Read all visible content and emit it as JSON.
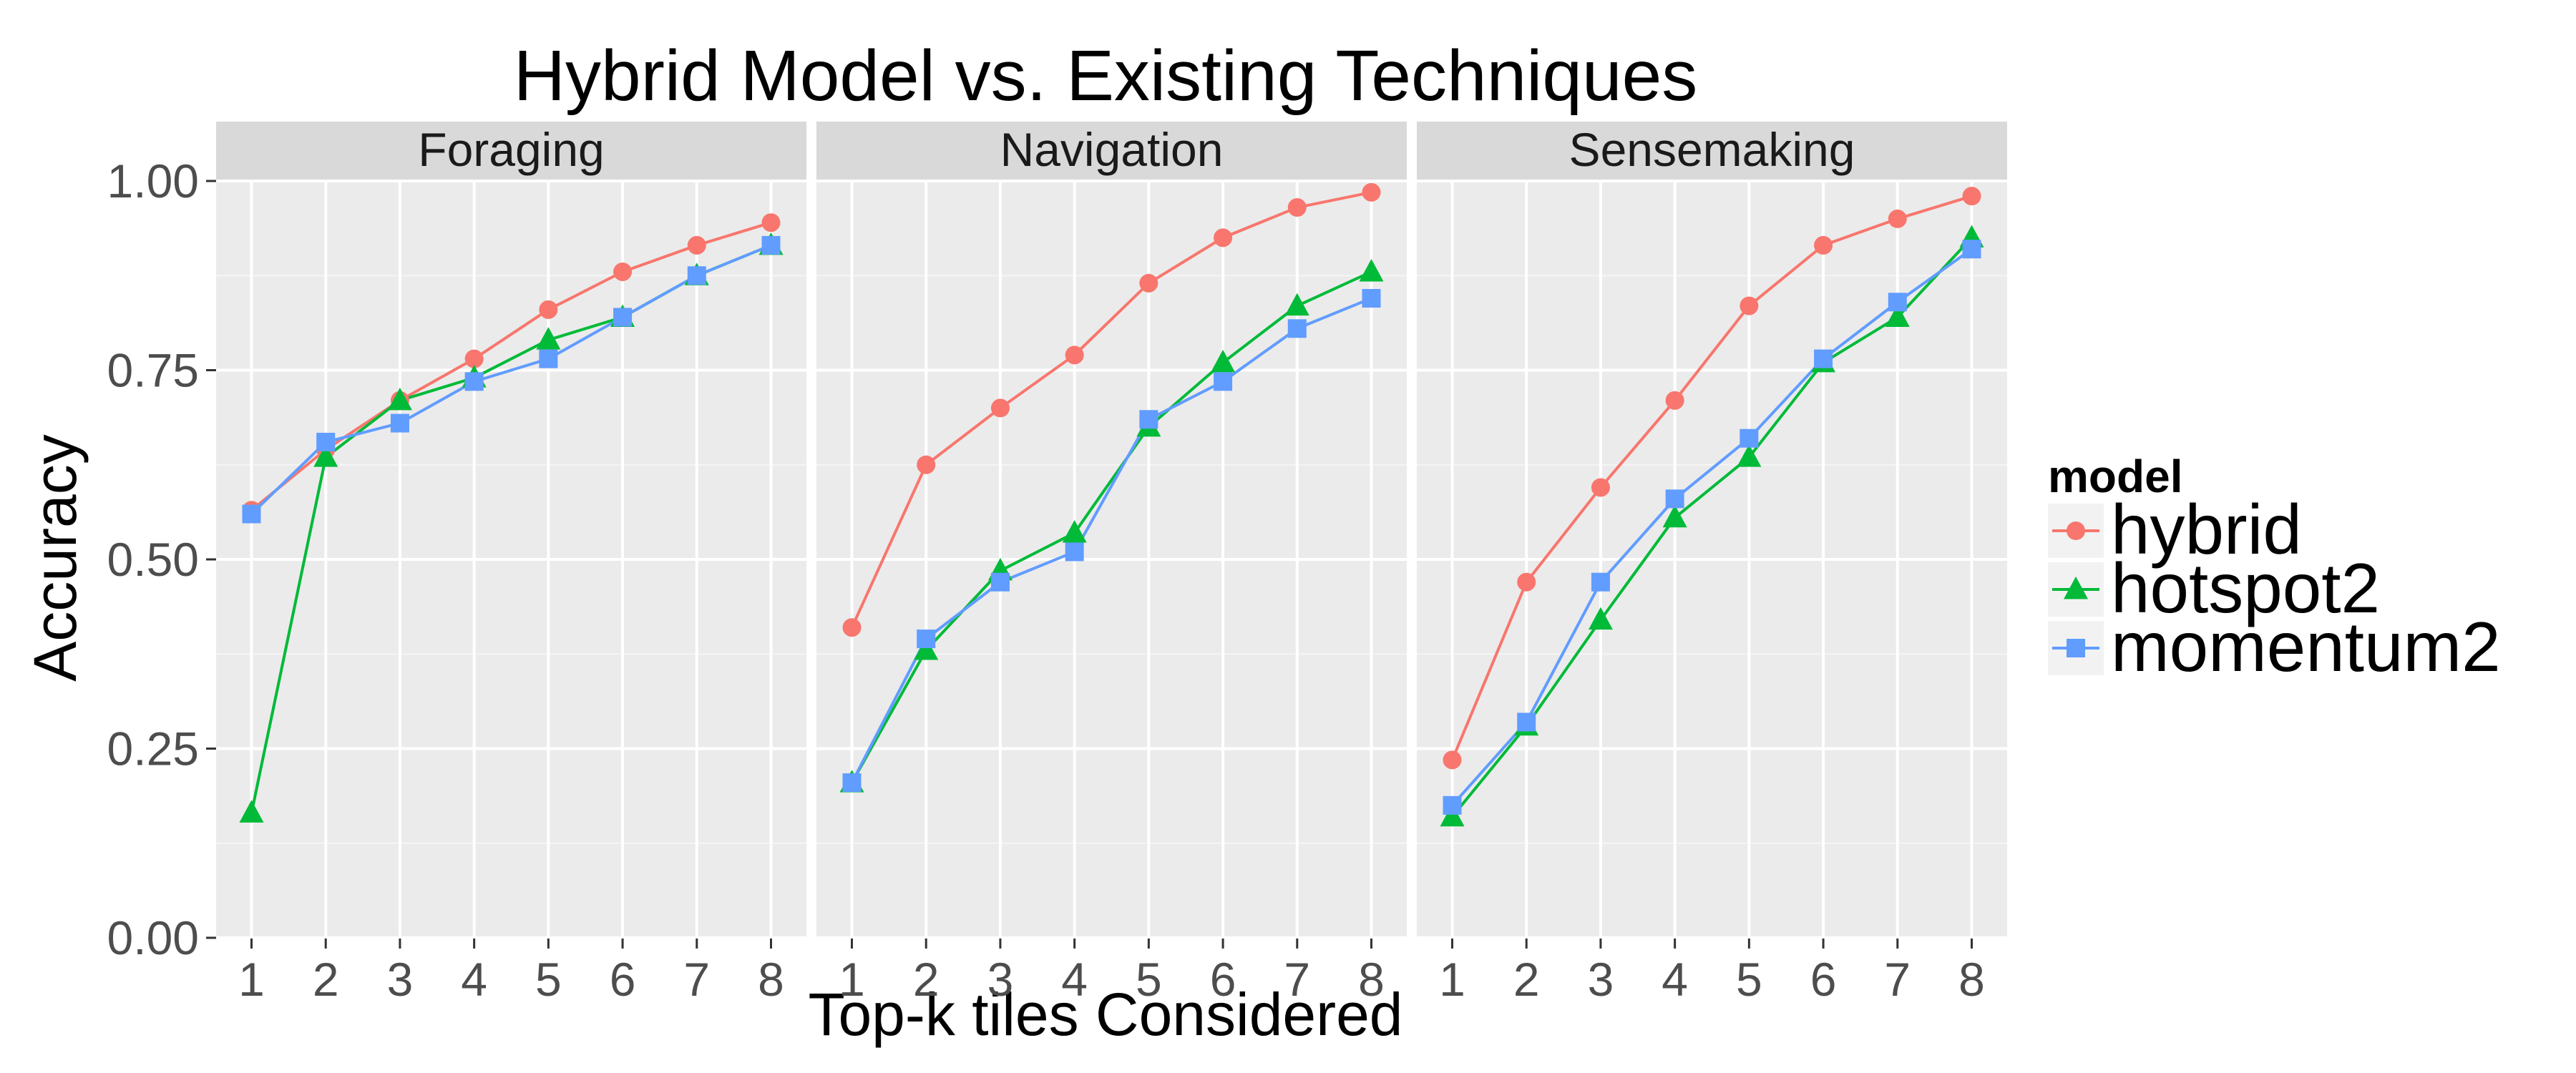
{
  "chart_data": {
    "type": "line",
    "title": "Hybrid Model vs. Existing Techniques",
    "xlabel": "Top-k tiles Considered",
    "ylabel": "Accuracy",
    "x": [
      1,
      2,
      3,
      4,
      5,
      6,
      7,
      8
    ],
    "x_ticks": [
      "1",
      "2",
      "3",
      "4",
      "5",
      "6",
      "7",
      "8"
    ],
    "ylim": [
      0,
      1
    ],
    "y_ticks": [
      0,
      0.25,
      0.5,
      0.75,
      1.0
    ],
    "y_tick_labels": [
      "0.00",
      "0.25",
      "0.50",
      "0.75",
      "1.00"
    ],
    "grid": true,
    "legend": {
      "title": "model",
      "placement": "right"
    },
    "colors": {
      "hybrid": "#F8766D",
      "hotspot2": "#00BA38",
      "momentum2": "#619CFF",
      "panel_bg": "#EBEBEB",
      "strip_bg": "#D9D9D9",
      "grid": "#FFFFFF",
      "tick_text": "#4D4D4D"
    },
    "series_markers": {
      "hybrid": "circle",
      "hotspot2": "triangle",
      "momentum2": "square"
    },
    "panels": [
      {
        "facet": "Foraging",
        "series": [
          {
            "name": "hybrid",
            "values": [
              0.565,
              0.645,
              0.71,
              0.765,
              0.83,
              0.88,
              0.915,
              0.945
            ]
          },
          {
            "name": "hotspot2",
            "values": [
              0.165,
              0.635,
              0.71,
              0.74,
              0.79,
              0.82,
              0.875,
              0.915
            ]
          },
          {
            "name": "momentum2",
            "values": [
              0.56,
              0.655,
              0.68,
              0.735,
              0.765,
              0.82,
              0.875,
              0.915
            ]
          }
        ]
      },
      {
        "facet": "Navigation",
        "series": [
          {
            "name": "hybrid",
            "values": [
              0.41,
              0.625,
              0.7,
              0.77,
              0.865,
              0.925,
              0.965,
              0.985
            ]
          },
          {
            "name": "hotspot2",
            "values": [
              0.205,
              0.38,
              0.485,
              0.535,
              0.675,
              0.76,
              0.835,
              0.88
            ]
          },
          {
            "name": "momentum2",
            "values": [
              0.205,
              0.395,
              0.47,
              0.51,
              0.685,
              0.735,
              0.805,
              0.845
            ]
          }
        ]
      },
      {
        "facet": "Sensemaking",
        "series": [
          {
            "name": "hybrid",
            "values": [
              0.235,
              0.47,
              0.595,
              0.71,
              0.835,
              0.915,
              0.95,
              0.98
            ]
          },
          {
            "name": "hotspot2",
            "values": [
              0.16,
              0.28,
              0.42,
              0.555,
              0.635,
              0.76,
              0.82,
              0.925
            ]
          },
          {
            "name": "momentum2",
            "values": [
              0.175,
              0.285,
              0.47,
              0.58,
              0.66,
              0.765,
              0.84,
              0.91
            ]
          }
        ]
      }
    ]
  }
}
